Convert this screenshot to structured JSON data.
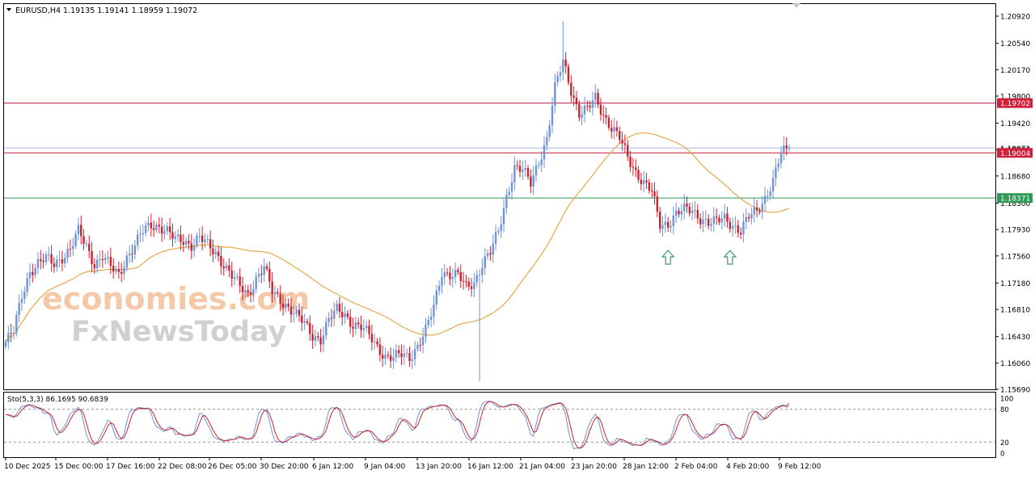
{
  "header": {
    "symbol": "EURUSD,H4",
    "ohlc": "1.19135 1.19141 1.18959 1.19072"
  },
  "watermark": {
    "line1": "economies.com",
    "line2": "FxNewsToday"
  },
  "colors": {
    "bull": "#6f93d8",
    "bear": "#d0202f",
    "ma": "#e2a33a",
    "resistance": "#c0183a",
    "support": "#2f9a55",
    "current": "#aabbdd",
    "stoch_main": "#6f93d8",
    "stoch_signal": "#d0202f",
    "arrow": "#36a064",
    "price_axis_box_red": "#d0203a",
    "price_axis_box_green": "#2f9a55"
  },
  "chart_data": [
    {
      "type": "candlestick",
      "title": "EURUSD,H4",
      "ylim": [
        1.1569,
        1.2109
      ],
      "y_ticks": [
        "1.20920",
        "1.20540",
        "1.20170",
        "1.19800",
        "1.19420",
        "1.19050",
        "1.18680",
        "1.18300",
        "1.17930",
        "1.17560",
        "1.17180",
        "1.16810",
        "1.16430",
        "1.16060",
        "1.15690"
      ],
      "x_ticks": [
        "10 Dec 2025",
        "15 Dec 00:00",
        "17 Dec 16:00",
        "22 Dec 08:00",
        "26 Dec 05:00",
        "30 Dec 20:00",
        "6 Jan 12:00",
        "9 Jan 04:00",
        "13 Jan 20:00",
        "16 Jan 12:00",
        "21 Jan 04:00",
        "23 Jan 20:00",
        "28 Jan 12:00",
        "2 Feb 04:00",
        "4 Feb 20:00",
        "9 Feb 12:00"
      ],
      "levels": [
        {
          "value": 1.19702,
          "label": "1.19702",
          "kind": "resistance"
        },
        {
          "value": 1.19072,
          "label": "1.19072",
          "kind": "current"
        },
        {
          "value": 1.19004,
          "label": "1.19004",
          "kind": "resistance"
        },
        {
          "value": 1.18371,
          "label": "1.18371",
          "kind": "support"
        }
      ],
      "anchors": [
        [
          0,
          1.1635
        ],
        [
          3,
          1.165
        ],
        [
          6,
          1.17
        ],
        [
          9,
          1.1735
        ],
        [
          12,
          1.1745
        ],
        [
          15,
          1.1752
        ],
        [
          18,
          1.1745
        ],
        [
          21,
          1.1755
        ],
        [
          24,
          1.1765
        ],
        [
          27,
          1.179
        ],
        [
          30,
          1.177
        ],
        [
          33,
          1.1745
        ],
        [
          36,
          1.1755
        ],
        [
          39,
          1.174
        ],
        [
          42,
          1.173
        ],
        [
          45,
          1.1755
        ],
        [
          48,
          1.177
        ],
        [
          51,
          1.179
        ],
        [
          54,
          1.18
        ],
        [
          57,
          1.1798
        ],
        [
          60,
          1.179
        ],
        [
          63,
          1.1778
        ],
        [
          66,
          1.1778
        ],
        [
          69,
          1.1772
        ],
        [
          72,
          1.1782
        ],
        [
          75,
          1.177
        ],
        [
          78,
          1.176
        ],
        [
          81,
          1.1745
        ],
        [
          84,
          1.1728
        ],
        [
          87,
          1.1712
        ],
        [
          90,
          1.1702
        ],
        [
          93,
          1.1725
        ],
        [
          96,
          1.174
        ],
        [
          99,
          1.1705
        ],
        [
          102,
          1.1695
        ],
        [
          105,
          1.1685
        ],
        [
          108,
          1.1672
        ],
        [
          111,
          1.166
        ],
        [
          114,
          1.1645
        ],
        [
          117,
          1.164
        ],
        [
          120,
          1.1665
        ],
        [
          123,
          1.168
        ],
        [
          126,
          1.1675
        ],
        [
          129,
          1.166
        ],
        [
          132,
          1.1655
        ],
        [
          135,
          1.1645
        ],
        [
          138,
          1.163
        ],
        [
          141,
          1.1615
        ],
        [
          144,
          1.1612
        ],
        [
          147,
          1.1618
        ],
        [
          150,
          1.1615
        ],
        [
          153,
          1.163
        ],
        [
          156,
          1.165
        ],
        [
          159,
          1.1685
        ],
        [
          162,
          1.1735
        ],
        [
          165,
          1.173
        ],
        [
          168,
          1.1728
        ],
        [
          171,
          1.1712
        ],
        [
          174,
          1.172
        ],
        [
          177,
          1.1745
        ],
        [
          180,
          1.176
        ],
        [
          183,
          1.179
        ],
        [
          186,
          1.184
        ],
        [
          189,
          1.188
        ],
        [
          192,
          1.1875
        ],
        [
          195,
          1.1858
        ],
        [
          198,
          1.189
        ],
        [
          201,
          1.192
        ],
        [
          204,
          1.199
        ],
        [
          207,
          1.203
        ],
        [
          210,
          1.199
        ],
        [
          213,
          1.1955
        ],
        [
          216,
          1.196
        ],
        [
          219,
          1.1978
        ],
        [
          222,
          1.1955
        ],
        [
          225,
          1.1935
        ],
        [
          228,
          1.192
        ],
        [
          231,
          1.1895
        ],
        [
          234,
          1.1875
        ],
        [
          237,
          1.1858
        ],
        [
          240,
          1.1845
        ],
        [
          243,
          1.18
        ],
        [
          246,
          1.1802
        ],
        [
          249,
          1.1815
        ],
        [
          252,
          1.182
        ],
        [
          255,
          1.182
        ],
        [
          258,
          1.181
        ],
        [
          261,
          1.1802
        ],
        [
          264,
          1.1803
        ],
        [
          267,
          1.181
        ],
        [
          270,
          1.18
        ],
        [
          273,
          1.179
        ],
        [
          276,
          1.181
        ],
        [
          279,
          1.182
        ],
        [
          282,
          1.1838
        ],
        [
          285,
          1.186
        ],
        [
          288,
          1.19
        ],
        [
          291,
          1.1907
        ]
      ],
      "ma_period": 50
    },
    {
      "type": "line",
      "title": "Sto(5,3,3) 86.1695 90.6839",
      "ylim": [
        0,
        100
      ],
      "y_ticks": [
        "100",
        "80",
        "20",
        "0"
      ],
      "levels": [
        80,
        20
      ],
      "series": [
        {
          "name": "main",
          "value": 86.1695
        },
        {
          "name": "signal",
          "value": 90.6839
        }
      ]
    }
  ],
  "markers": [
    {
      "candle": 246,
      "label": "up-arrow"
    },
    {
      "candle": 269,
      "label": "up-arrow"
    }
  ]
}
